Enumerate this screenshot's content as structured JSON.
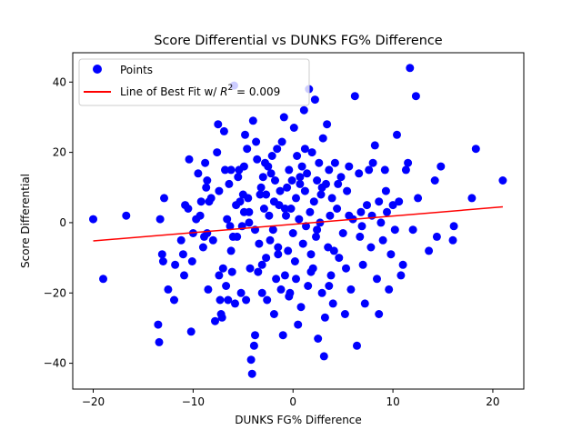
{
  "chart_data": {
    "type": "scatter",
    "title": "Score Differential vs DUNKS FG% Difference",
    "xlabel": "DUNKS FG% Difference",
    "ylabel": "Score Differential",
    "xlim": [
      -22.05,
      23.1
    ],
    "ylim": [
      -47.35,
      48.35
    ],
    "xticks": [
      -20,
      -10,
      0,
      10,
      20
    ],
    "yticks": [
      -40,
      -20,
      0,
      20,
      40
    ],
    "grid": false,
    "legend_position": "top-left",
    "colors": {
      "points": "#0000ff",
      "fit_line": "#ff0000"
    },
    "series": [
      {
        "name": "Points",
        "kind": "scatter",
        "points": [
          [
            -20,
            1
          ],
          [
            -19,
            -16
          ],
          [
            -16.7,
            2
          ],
          [
            -13.5,
            -29
          ],
          [
            -13.4,
            -34
          ],
          [
            -13.3,
            1
          ],
          [
            -13.1,
            -9
          ],
          [
            -13,
            -11
          ],
          [
            -12.9,
            7
          ],
          [
            -12.5,
            -19
          ],
          [
            -11.9,
            -22
          ],
          [
            -11.8,
            -12
          ],
          [
            -11,
            -9
          ],
          [
            -10.9,
            -15
          ],
          [
            -10.8,
            5
          ],
          [
            -10.5,
            4
          ],
          [
            -10.4,
            18
          ],
          [
            -10.2,
            -31
          ],
          [
            -10.1,
            -11
          ],
          [
            -10,
            -3
          ],
          [
            -9.5,
            14
          ],
          [
            -9.3,
            2
          ],
          [
            -9.2,
            6
          ],
          [
            -9,
            -7
          ],
          [
            -8.9,
            -4
          ],
          [
            -8.8,
            17
          ],
          [
            -8.7,
            10
          ],
          [
            -8.6,
            12
          ],
          [
            -8.5,
            -19
          ],
          [
            -8.4,
            6
          ],
          [
            -8.2,
            7
          ],
          [
            -8,
            -5
          ],
          [
            -7.8,
            -28
          ],
          [
            -7.6,
            20
          ],
          [
            -7.5,
            28
          ],
          [
            -7.4,
            -15
          ],
          [
            -7.3,
            -22
          ],
          [
            -7.2,
            -26
          ],
          [
            -7.1,
            -27
          ],
          [
            -7,
            -13
          ],
          [
            -6.9,
            26
          ],
          [
            -6.8,
            15
          ],
          [
            -6.7,
            -18
          ],
          [
            -6.6,
            1
          ],
          [
            -6.5,
            -22
          ],
          [
            -6.4,
            11
          ],
          [
            -6.3,
            -1
          ],
          [
            -6.2,
            15
          ],
          [
            -6.1,
            -14
          ],
          [
            -6,
            -4
          ],
          [
            -5.9,
            39
          ],
          [
            -5.8,
            -23
          ],
          [
            -5.7,
            5
          ],
          [
            -5.6,
            -4
          ],
          [
            -5.5,
            13
          ],
          [
            -5.4,
            15
          ],
          [
            -5.3,
            6
          ],
          [
            -5.2,
            -20
          ],
          [
            -5.1,
            -1
          ],
          [
            -5,
            8
          ],
          [
            -4.9,
            16
          ],
          [
            -4.8,
            25
          ],
          [
            -4.7,
            -22
          ],
          [
            -4.6,
            21
          ],
          [
            -4.5,
            7
          ],
          [
            -4.4,
            3
          ],
          [
            -4.3,
            -13
          ],
          [
            -4.2,
            -39
          ],
          [
            -4.1,
            -43
          ],
          [
            -4,
            29
          ],
          [
            -3.9,
            -35
          ],
          [
            -3.8,
            -32
          ],
          [
            -3.7,
            23
          ],
          [
            -3.6,
            18
          ],
          [
            -3.5,
            -14
          ],
          [
            -3.4,
            -6
          ],
          [
            -3.3,
            8
          ],
          [
            -3.2,
            10
          ],
          [
            -3.1,
            -20
          ],
          [
            -3,
            13
          ],
          [
            -2.9,
            4
          ],
          [
            -2.8,
            17
          ],
          [
            -2.7,
            -10
          ],
          [
            -2.6,
            -22
          ],
          [
            -2.5,
            16
          ],
          [
            -2.4,
            2
          ],
          [
            -2.3,
            -5
          ],
          [
            -2.2,
            14
          ],
          [
            -2.1,
            19
          ],
          [
            -2,
            -2
          ],
          [
            -1.9,
            -26
          ],
          [
            -1.8,
            12
          ],
          [
            -1.7,
            -16
          ],
          [
            -1.6,
            21
          ],
          [
            -1.5,
            -7
          ],
          [
            -1.4,
            5
          ],
          [
            -1.3,
            9
          ],
          [
            -1.2,
            -19
          ],
          [
            -1.1,
            23
          ],
          [
            -1,
            -32
          ],
          [
            -0.9,
            30
          ],
          [
            -0.8,
            -15
          ],
          [
            -0.7,
            2
          ],
          [
            -0.6,
            10
          ],
          [
            -0.5,
            -8
          ],
          [
            -0.4,
            15
          ],
          [
            -0.3,
            -20
          ],
          [
            -0.2,
            4
          ],
          [
            -0.1,
            12
          ],
          [
            0,
            -3
          ],
          [
            0.1,
            27
          ],
          [
            0.2,
            -11
          ],
          [
            0.3,
            7
          ],
          [
            0.4,
            19
          ],
          [
            0.5,
            -29
          ],
          [
            0.6,
            1
          ],
          [
            0.7,
            11
          ],
          [
            0.8,
            -24
          ],
          [
            0.9,
            16
          ],
          [
            1,
            -6
          ],
          [
            1.1,
            32
          ],
          [
            1.2,
            9
          ],
          [
            1.3,
            -1
          ],
          [
            1.4,
            14
          ],
          [
            1.5,
            -18
          ],
          [
            1.6,
            38
          ],
          [
            1.7,
            3
          ],
          [
            1.8,
            -9
          ],
          [
            1.9,
            20
          ],
          [
            2,
            -13
          ],
          [
            2.1,
            6
          ],
          [
            2.2,
            35
          ],
          [
            2.3,
            -4
          ],
          [
            2.4,
            12
          ],
          [
            2.5,
            -33
          ],
          [
            2.6,
            17
          ],
          [
            2.7,
            0
          ],
          [
            2.8,
            8
          ],
          [
            2.9,
            -20
          ],
          [
            3,
            24
          ],
          [
            3.1,
            -38
          ],
          [
            3.2,
            -27
          ],
          [
            3.3,
            11
          ],
          [
            3.4,
            28
          ],
          [
            3.5,
            -7
          ],
          [
            3.6,
            15
          ],
          [
            3.7,
            2
          ],
          [
            3.8,
            -15
          ],
          [
            3.9,
            7
          ],
          [
            4,
            -23
          ],
          [
            4.2,
            17
          ],
          [
            4.4,
            4
          ],
          [
            4.6,
            -10
          ],
          [
            4.8,
            13
          ],
          [
            5,
            -3
          ],
          [
            5.2,
            -26
          ],
          [
            5.4,
            9
          ],
          [
            5.6,
            2
          ],
          [
            5.8,
            -19
          ],
          [
            6,
            1
          ],
          [
            6.2,
            36
          ],
          [
            6.4,
            -35
          ],
          [
            6.6,
            14
          ],
          [
            6.8,
            3
          ],
          [
            7,
            -12
          ],
          [
            7.2,
            -23
          ],
          [
            7.4,
            5
          ],
          [
            7.6,
            15
          ],
          [
            7.8,
            -7
          ],
          [
            8,
            17
          ],
          [
            8.2,
            22
          ],
          [
            8.4,
            -16
          ],
          [
            8.6,
            6
          ],
          [
            8.8,
            0
          ],
          [
            9,
            -5
          ],
          [
            9.2,
            15
          ],
          [
            9.4,
            3
          ],
          [
            9.6,
            -19
          ],
          [
            9.8,
            -9
          ],
          [
            10,
            5
          ],
          [
            10.2,
            -2
          ],
          [
            10.4,
            25
          ],
          [
            10.6,
            6
          ],
          [
            10.8,
            -15
          ],
          [
            11,
            -12
          ],
          [
            11.3,
            15
          ],
          [
            11.5,
            17
          ],
          [
            11.7,
            44
          ],
          [
            12,
            -2
          ],
          [
            12.3,
            36
          ],
          [
            12.5,
            7
          ],
          [
            13.6,
            -8
          ],
          [
            14.2,
            12
          ],
          [
            14.4,
            -4
          ],
          [
            14.8,
            16
          ],
          [
            16,
            -5
          ],
          [
            16.1,
            -1
          ],
          [
            17.9,
            7
          ],
          [
            18.3,
            21
          ],
          [
            21,
            12
          ],
          [
            -1.5,
            -9
          ],
          [
            -0.8,
            4
          ],
          [
            0.3,
            -16
          ],
          [
            1.2,
            21
          ],
          [
            2.4,
            -2
          ],
          [
            3.6,
            -18
          ],
          [
            4.5,
            11
          ],
          [
            5.3,
            -13
          ],
          [
            6.7,
            -4
          ],
          [
            7.9,
            2
          ],
          [
            8.6,
            -26
          ],
          [
            9.3,
            9
          ],
          [
            -2.7,
            8
          ],
          [
            -3.8,
            -2
          ],
          [
            -4.9,
            3
          ],
          [
            -6.2,
            -8
          ],
          [
            -7.4,
            9
          ],
          [
            -8.6,
            -3
          ],
          [
            -9.7,
            1
          ],
          [
            -11.2,
            -5
          ],
          [
            -0.4,
            -21
          ],
          [
            0.7,
            13
          ],
          [
            1.8,
            -14
          ],
          [
            2.9,
            10
          ],
          [
            4.1,
            -8
          ],
          [
            5.6,
            16
          ],
          [
            6.9,
            -1
          ],
          [
            -1.9,
            6
          ],
          [
            -3.1,
            -12
          ],
          [
            -4.4,
            0
          ]
        ]
      },
      {
        "name": "Line of Best Fit w/ $R^2 = 0.009$",
        "legend_label": "Line of Best Fit w/ ",
        "legend_math_r": "R",
        "legend_math_exp": "2",
        "legend_math_tail": " = 0.009",
        "kind": "line",
        "points": [
          [
            -20,
            -5.2
          ],
          [
            21,
            4.5
          ]
        ]
      }
    ]
  }
}
